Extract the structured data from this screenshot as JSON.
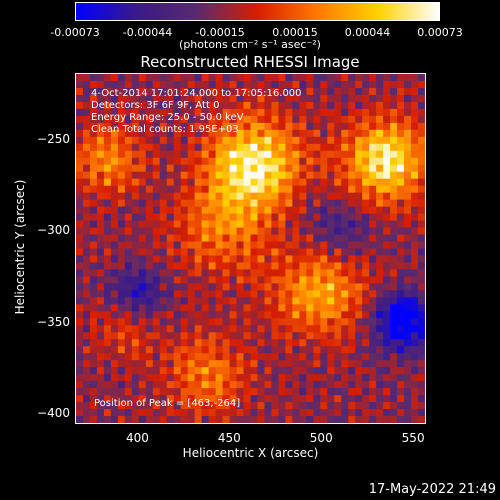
{
  "colorbar": {
    "ticks": [
      "-0.00073",
      "-0.00044",
      "-0.00015",
      "0.00015",
      "0.00044",
      "0.00073"
    ],
    "tick_values": [
      -0.00073,
      -0.00044,
      -0.00015,
      0.00015,
      0.00044,
      0.00073
    ],
    "range": [
      -0.00073,
      0.00073
    ],
    "unit_label": "(photons cm⁻² s⁻¹ asec⁻²)",
    "colormap": [
      "#0000ff",
      "#3a1a8a",
      "#5a2a6e",
      "#d81e00",
      "#ff7a00",
      "#ffd200",
      "#ffffff"
    ]
  },
  "chart_data": {
    "type": "heatmap",
    "title": "Reconstructed RHESSI Image",
    "xlabel": "Heliocentric X (arcsec)",
    "ylabel": "Heliocentric Y (arcsec)",
    "xlim": [
      366,
      557
    ],
    "ylim": [
      -406,
      -214
    ],
    "xticks": [
      {
        "value": 400,
        "label": "400"
      },
      {
        "value": 450,
        "label": "450"
      },
      {
        "value": 500,
        "label": "500"
      },
      {
        "value": 550,
        "label": "550"
      }
    ],
    "yticks": [
      {
        "value": -250,
        "label": "−250"
      },
      {
        "value": -300,
        "label": "−300"
      },
      {
        "value": -350,
        "label": "−350"
      },
      {
        "value": -400,
        "label": "−400"
      }
    ],
    "sources": [
      {
        "x": 463,
        "y": -264,
        "amp": 1.0,
        "sigma": 18
      },
      {
        "x": 535,
        "y": -262,
        "amp": 0.95,
        "sigma": 16
      },
      {
        "x": 383,
        "y": -262,
        "amp": 0.55,
        "sigma": 13
      },
      {
        "x": 500,
        "y": -333,
        "amp": 0.65,
        "sigma": 18
      },
      {
        "x": 438,
        "y": -380,
        "amp": 0.5,
        "sigma": 15
      },
      {
        "x": 445,
        "y": -300,
        "amp": 0.45,
        "sigma": 18
      },
      {
        "x": 395,
        "y": -355,
        "amp": 0.3,
        "sigma": 12
      }
    ],
    "negative_regions": [
      {
        "x": 545,
        "y": -350,
        "amp": 1.0,
        "sigma": 11
      },
      {
        "x": 400,
        "y": -335,
        "amp": 0.55,
        "sigma": 10
      },
      {
        "x": 510,
        "y": -300,
        "amp": 0.35,
        "sigma": 14
      }
    ],
    "annotations": {
      "time": "4-Oct-2014 17:01:24.000 to 17:05:16.000",
      "detectors": "Detectors: 3F 6F 9F, Att 0",
      "energy": "Energy Range: 25.0 - 50.0 keV",
      "method": "Clean     Total counts: 1.95E+03",
      "peak": "Position of Peak = [463,-264]"
    }
  },
  "footer": {
    "date": "17-May-2022 21:49"
  }
}
